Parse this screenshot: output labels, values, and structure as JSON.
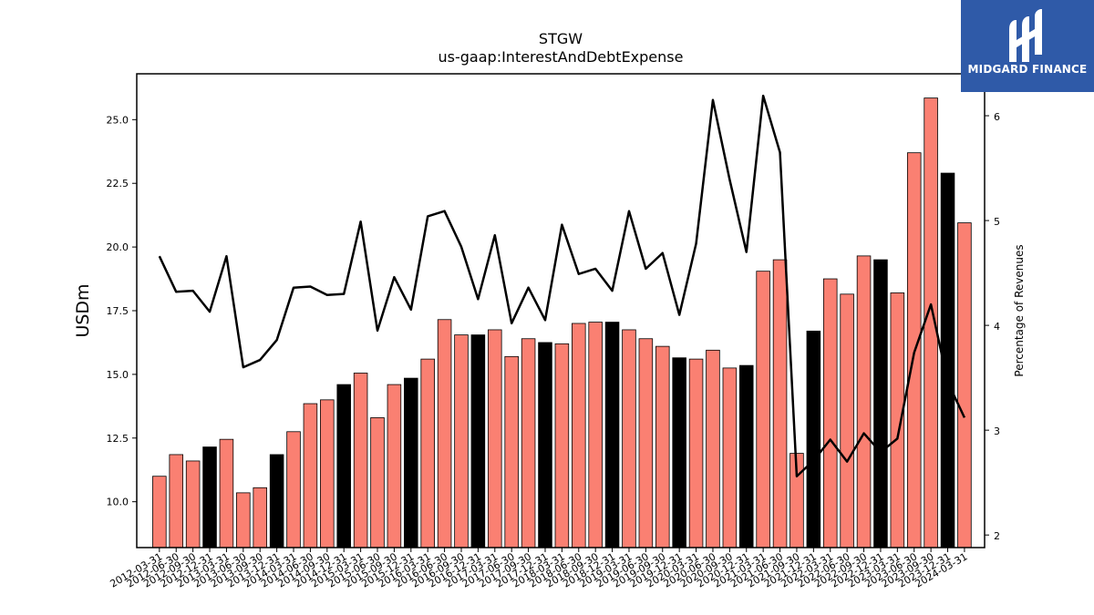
{
  "brand": {
    "name": "MIDGARD FINANCE",
    "bg_color": "#2f5aa8"
  },
  "chart_data": {
    "type": "bar",
    "title": "STGW",
    "subtitle": "us-gaap:InterestAndDebtExpense",
    "ylabel": "USDm",
    "y2label": "Percentage of Revenues",
    "ylim": [
      8.2,
      26.8
    ],
    "y2lim": [
      1.88,
      6.4
    ],
    "yticks": [
      10.0,
      12.5,
      15.0,
      17.5,
      20.0,
      22.5,
      25.0
    ],
    "y2ticks": [
      2,
      3,
      4,
      5,
      6
    ],
    "categories": [
      "2012-03-31",
      "2012-06-30",
      "2012-09-30",
      "2012-12-31",
      "2013-03-31",
      "2013-06-30",
      "2013-09-30",
      "2013-12-31",
      "2014-03-31",
      "2014-06-30",
      "2014-09-30",
      "2014-12-31",
      "2015-03-31",
      "2015-06-30",
      "2015-09-30",
      "2015-12-31",
      "2016-03-31",
      "2016-06-30",
      "2016-09-30",
      "2016-12-31",
      "2017-03-31",
      "2017-06-30",
      "2017-09-30",
      "2017-12-31",
      "2018-03-31",
      "2018-06-30",
      "2018-09-30",
      "2018-12-31",
      "2019-03-31",
      "2019-06-30",
      "2019-09-30",
      "2019-12-31",
      "2020-03-31",
      "2020-06-30",
      "2020-09-30",
      "2020-12-31",
      "2021-03-31",
      "2021-06-30",
      "2021-09-30",
      "2021-12-31",
      "2022-03-31",
      "2022-06-30",
      "2022-09-30",
      "2022-12-31",
      "2023-03-31",
      "2023-06-30",
      "2023-09-30",
      "2023-12-31",
      "2024-03-31"
    ],
    "series": [
      {
        "values": [
          11.0,
          11.85,
          11.6,
          12.15,
          12.45,
          10.35,
          10.55,
          11.85,
          12.75,
          13.85,
          14.0,
          14.6,
          15.05,
          13.3,
          14.6,
          14.85,
          15.6,
          17.15,
          16.55,
          16.55,
          16.75,
          15.7,
          16.4,
          16.25,
          16.2,
          17.0,
          17.05,
          17.05,
          16.75,
          16.4,
          16.1,
          15.65,
          15.6,
          15.95,
          15.25,
          15.35,
          19.05,
          19.5,
          11.9,
          16.7,
          18.75,
          18.15,
          19.65,
          19.5,
          18.2,
          23.7,
          25.85,
          22.9,
          20.95
        ]
      },
      {
        "axis": "right",
        "values": [
          4.66,
          4.32,
          4.33,
          4.13,
          4.66,
          3.6,
          3.67,
          3.86,
          4.36,
          4.37,
          4.29,
          4.3,
          4.99,
          3.95,
          4.46,
          4.15,
          5.04,
          5.09,
          4.75,
          4.25,
          4.86,
          4.02,
          4.36,
          4.05,
          4.96,
          4.49,
          4.54,
          4.33,
          5.09,
          4.54,
          4.69,
          4.1,
          4.78,
          6.15,
          5.39,
          4.7,
          6.19,
          5.65,
          2.56,
          2.71,
          2.91,
          2.7,
          2.97,
          2.79,
          2.92,
          3.74,
          4.2,
          3.46,
          3.12
        ]
      }
    ],
    "bar_colors": {
      "default": "#fa8072",
      "q4": "#000000"
    },
    "highlight_quarter_end": "12-31",
    "line_color": "#000000"
  }
}
